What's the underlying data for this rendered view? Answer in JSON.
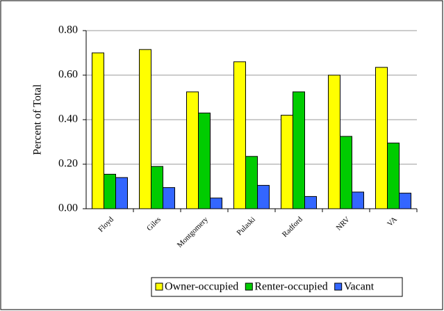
{
  "chart_data": {
    "type": "bar",
    "y_label": "Percent of Total",
    "categories": [
      "Floyd",
      "Giles",
      "Montgomery",
      "Pulaski",
      "Radford",
      "NRV",
      "VA"
    ],
    "series": [
      {
        "name": "Owner-occupied",
        "color": "#ffff00",
        "values": [
          0.7,
          0.715,
          0.525,
          0.66,
          0.42,
          0.6,
          0.635
        ]
      },
      {
        "name": "Renter-occupied",
        "color": "#00cc00",
        "values": [
          0.155,
          0.19,
          0.43,
          0.235,
          0.525,
          0.325,
          0.295
        ]
      },
      {
        "name": "Vacant",
        "color": "#3366ff",
        "values": [
          0.14,
          0.095,
          0.048,
          0.105,
          0.055,
          0.075,
          0.07
        ]
      }
    ],
    "ylim": [
      0,
      0.8
    ],
    "yticks": [
      {
        "value": 0,
        "label": "0.00"
      },
      {
        "value": 0.2,
        "label": "0.20"
      },
      {
        "value": 0.4,
        "label": "0.40"
      },
      {
        "value": 0.6,
        "label": "0.60"
      },
      {
        "value": 0.8,
        "label": "0.80"
      }
    ],
    "grid": true,
    "legend": "bottom"
  }
}
